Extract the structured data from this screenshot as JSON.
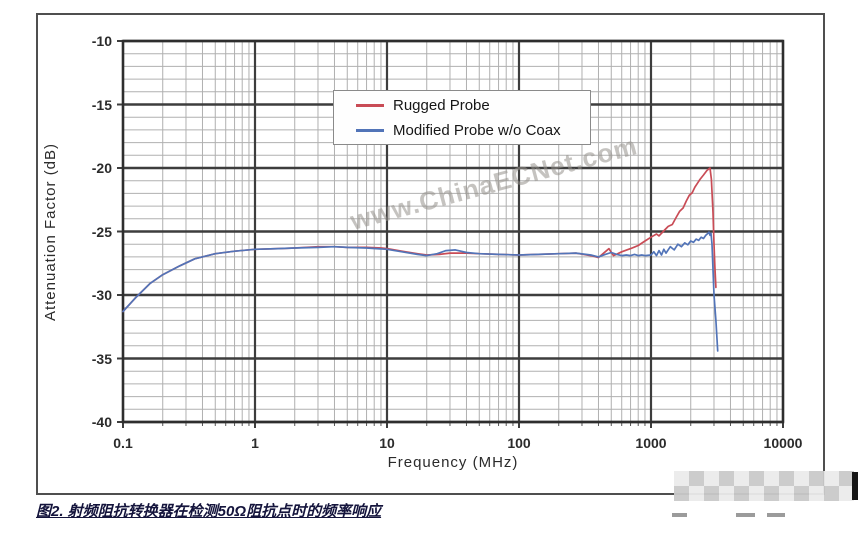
{
  "figure": {
    "watermark": "www.ChinaECNet.com",
    "caption": "图2. 射频阻抗转换器在检测50Ω阻抗点时的频率响应"
  },
  "chart_data": {
    "type": "line",
    "title": "",
    "xlabel": "Frequency (MHz)",
    "ylabel": "Attenuation Factor (dB)",
    "x_scale": "log",
    "xlim": [
      0.1,
      10000
    ],
    "ylim": [
      -40,
      -10
    ],
    "x_ticks": [
      {
        "v": 0.1,
        "label": "0.1"
      },
      {
        "v": 1,
        "label": "1"
      },
      {
        "v": 10,
        "label": "10"
      },
      {
        "v": 100,
        "label": "100"
      },
      {
        "v": 1000,
        "label": "1000"
      },
      {
        "v": 10000,
        "label": "10000"
      }
    ],
    "y_ticks": [
      {
        "v": -10,
        "label": "-10"
      },
      {
        "v": -15,
        "label": "-15"
      },
      {
        "v": -20,
        "label": "-20"
      },
      {
        "v": -25,
        "label": "-25"
      },
      {
        "v": -30,
        "label": "-30"
      },
      {
        "v": -35,
        "label": "-35"
      },
      {
        "v": -40,
        "label": "-40"
      }
    ],
    "grid": {
      "minor_y_step_dB": 1,
      "major_y_step_dB": 5,
      "major_x": "decades",
      "minor_x": "log subdivisions 2-9"
    },
    "legend_position": "inside upper-middle",
    "series": [
      {
        "name": "Rugged Probe",
        "color": "#c94c56",
        "points": [
          [
            0.1,
            -31.3
          ],
          [
            0.125,
            -30.2
          ],
          [
            0.16,
            -29.1
          ],
          [
            0.2,
            -28.4
          ],
          [
            0.27,
            -27.7
          ],
          [
            0.35,
            -27.15
          ],
          [
            0.5,
            -26.75
          ],
          [
            0.7,
            -26.55
          ],
          [
            1,
            -26.4
          ],
          [
            1.5,
            -26.35
          ],
          [
            2,
            -26.3
          ],
          [
            3,
            -26.2
          ],
          [
            4,
            -26.2
          ],
          [
            5,
            -26.25
          ],
          [
            7,
            -26.25
          ],
          [
            9,
            -26.3
          ],
          [
            10,
            -26.35
          ],
          [
            13,
            -26.55
          ],
          [
            17,
            -26.75
          ],
          [
            20,
            -26.85
          ],
          [
            25,
            -26.8
          ],
          [
            30,
            -26.7
          ],
          [
            40,
            -26.7
          ],
          [
            50,
            -26.75
          ],
          [
            70,
            -26.8
          ],
          [
            100,
            -26.85
          ],
          [
            140,
            -26.8
          ],
          [
            200,
            -26.75
          ],
          [
            270,
            -26.7
          ],
          [
            350,
            -26.9
          ],
          [
            400,
            -27.05
          ],
          [
            450,
            -26.6
          ],
          [
            480,
            -26.35
          ],
          [
            520,
            -26.9
          ],
          [
            560,
            -26.75
          ],
          [
            600,
            -26.6
          ],
          [
            700,
            -26.35
          ],
          [
            800,
            -26.1
          ],
          [
            900,
            -25.75
          ],
          [
            1000,
            -25.45
          ],
          [
            1100,
            -25.2
          ],
          [
            1150,
            -25.35
          ],
          [
            1250,
            -24.95
          ],
          [
            1350,
            -24.6
          ],
          [
            1450,
            -24.45
          ],
          [
            1550,
            -23.9
          ],
          [
            1650,
            -23.4
          ],
          [
            1750,
            -23.15
          ],
          [
            1850,
            -22.6
          ],
          [
            1950,
            -22.15
          ],
          [
            2050,
            -21.95
          ],
          [
            2150,
            -21.5
          ],
          [
            2250,
            -21.2
          ],
          [
            2350,
            -20.9
          ],
          [
            2500,
            -20.55
          ],
          [
            2650,
            -20.2
          ],
          [
            2800,
            -20.0
          ],
          [
            2870,
            -20.9
          ],
          [
            2950,
            -23.5
          ],
          [
            3000,
            -26.0
          ],
          [
            3050,
            -27.8
          ],
          [
            3100,
            -29.4
          ]
        ]
      },
      {
        "name": "Modified Probe w/o Coax",
        "color": "#5274b8",
        "points": [
          [
            0.1,
            -31.3
          ],
          [
            0.125,
            -30.2
          ],
          [
            0.16,
            -29.1
          ],
          [
            0.2,
            -28.4
          ],
          [
            0.27,
            -27.7
          ],
          [
            0.35,
            -27.15
          ],
          [
            0.5,
            -26.75
          ],
          [
            0.7,
            -26.55
          ],
          [
            1,
            -26.4
          ],
          [
            1.5,
            -26.35
          ],
          [
            2,
            -26.3
          ],
          [
            3,
            -26.25
          ],
          [
            4,
            -26.2
          ],
          [
            5,
            -26.25
          ],
          [
            7,
            -26.3
          ],
          [
            10,
            -26.4
          ],
          [
            13,
            -26.6
          ],
          [
            17,
            -26.8
          ],
          [
            20,
            -26.9
          ],
          [
            24,
            -26.75
          ],
          [
            28,
            -26.5
          ],
          [
            33,
            -26.45
          ],
          [
            40,
            -26.65
          ],
          [
            50,
            -26.75
          ],
          [
            70,
            -26.8
          ],
          [
            100,
            -26.85
          ],
          [
            140,
            -26.8
          ],
          [
            200,
            -26.75
          ],
          [
            270,
            -26.7
          ],
          [
            350,
            -26.85
          ],
          [
            400,
            -27.0
          ],
          [
            450,
            -26.8
          ],
          [
            500,
            -26.65
          ],
          [
            550,
            -26.8
          ],
          [
            600,
            -26.9
          ],
          [
            650,
            -26.85
          ],
          [
            700,
            -26.9
          ],
          [
            750,
            -26.8
          ],
          [
            800,
            -26.9
          ],
          [
            850,
            -26.85
          ],
          [
            900,
            -26.9
          ],
          [
            1000,
            -26.85
          ],
          [
            1050,
            -26.6
          ],
          [
            1100,
            -26.9
          ],
          [
            1150,
            -26.5
          ],
          [
            1200,
            -26.85
          ],
          [
            1250,
            -26.4
          ],
          [
            1300,
            -26.7
          ],
          [
            1400,
            -26.2
          ],
          [
            1500,
            -26.45
          ],
          [
            1600,
            -26.0
          ],
          [
            1700,
            -26.2
          ],
          [
            1800,
            -25.9
          ],
          [
            1900,
            -26.05
          ],
          [
            2000,
            -25.75
          ],
          [
            2100,
            -25.85
          ],
          [
            2200,
            -25.6
          ],
          [
            2300,
            -25.7
          ],
          [
            2400,
            -25.45
          ],
          [
            2500,
            -25.55
          ],
          [
            2600,
            -25.3
          ],
          [
            2700,
            -25.15
          ],
          [
            2750,
            -25.05
          ],
          [
            2800,
            -25.3
          ],
          [
            2850,
            -25.15
          ],
          [
            2900,
            -26.0
          ],
          [
            2950,
            -28.0
          ],
          [
            3000,
            -30.0
          ],
          [
            3100,
            -32.0
          ],
          [
            3200,
            -34.4
          ]
        ]
      }
    ]
  }
}
